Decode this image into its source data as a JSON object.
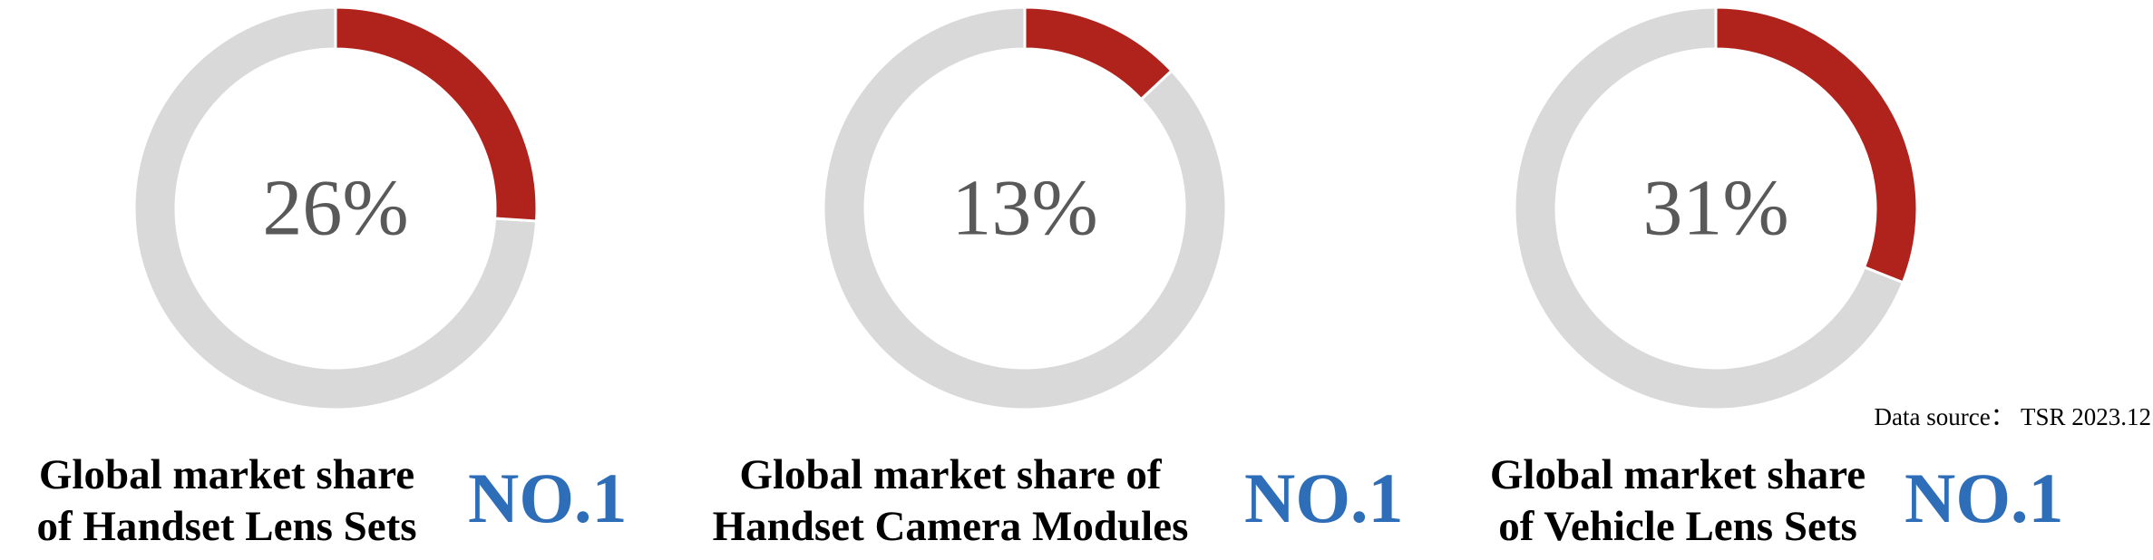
{
  "chart_data": [
    {
      "type": "pie",
      "style": "donut",
      "value": 26,
      "center_label": "26%",
      "caption_lines": [
        "Global market share",
        "of Handset Lens Sets"
      ],
      "rank_label": "NO.1"
    },
    {
      "type": "pie",
      "style": "donut",
      "value": 13,
      "center_label": "13%",
      "caption_lines": [
        "Global market share of",
        "Handset Camera Modules"
      ],
      "rank_label": "NO.1"
    },
    {
      "type": "pie",
      "style": "donut",
      "value": 31,
      "center_label": "31%",
      "caption_lines": [
        "Global market share",
        "of  Vehicle Lens Sets"
      ],
      "rank_label": "NO.1"
    }
  ],
  "colors": {
    "highlight": "#b0231c",
    "remainder": "#d9d9d9",
    "center_text": "#595959",
    "rank_text": "#2e6db7"
  },
  "source_note": "Data source： TSR 2023.12"
}
